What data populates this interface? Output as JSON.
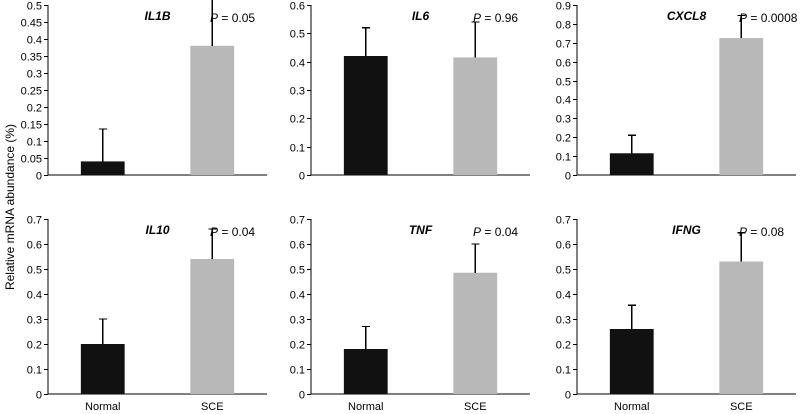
{
  "figure": {
    "ylabel": "Relative mRNA abundance (%)"
  },
  "colors": {
    "normal": "#111111",
    "sce": "#b8b8b8"
  },
  "chart_data": [
    {
      "type": "bar",
      "title": "IL1B",
      "annotation": {
        "prefix": "P",
        "text": " = 0.05"
      },
      "categories": [
        "Normal",
        "SCE"
      ],
      "values": [
        0.04,
        0.38
      ],
      "errors": [
        0.095,
        0.15
      ],
      "ylim": [
        0,
        0.5
      ],
      "yticks": [
        "0",
        "0.05",
        "0.1",
        "0.15",
        "0.2",
        "0.25",
        "0.3",
        "0.35",
        "0.4",
        "0.45",
        "0.5"
      ],
      "show_category_labels": false
    },
    {
      "type": "bar",
      "title": "IL6",
      "annotation": {
        "prefix": "P",
        "text": " = 0.96"
      },
      "categories": [
        "Normal",
        "SCE"
      ],
      "values": [
        0.42,
        0.415
      ],
      "errors": [
        0.1,
        0.125
      ],
      "ylim": [
        0,
        0.6
      ],
      "yticks": [
        "0",
        "0.1",
        "0.2",
        "0.3",
        "0.4",
        "0.5",
        "0.6"
      ],
      "show_category_labels": false
    },
    {
      "type": "bar",
      "title": "CXCL8",
      "annotation": {
        "prefix": "P",
        "text": " = 0.0008"
      },
      "categories": [
        "Normal",
        "SCE"
      ],
      "values": [
        0.115,
        0.725
      ],
      "errors": [
        0.095,
        0.12
      ],
      "ylim": [
        0,
        0.9
      ],
      "yticks": [
        "0",
        "0.1",
        "0.2",
        "0.3",
        "0.4",
        "0.5",
        "0.6",
        "0.7",
        "0.8",
        "0.9"
      ],
      "show_category_labels": false
    },
    {
      "type": "bar",
      "title": "IL10",
      "annotation": {
        "prefix": "P",
        "text": " = 0.04"
      },
      "categories": [
        "Normal",
        "SCE"
      ],
      "values": [
        0.2,
        0.54
      ],
      "errors": [
        0.1,
        0.12
      ],
      "ylim": [
        0,
        0.7
      ],
      "yticks": [
        "0",
        "0.1",
        "0.2",
        "0.3",
        "0.4",
        "0.5",
        "0.6",
        "0.7"
      ],
      "show_category_labels": true
    },
    {
      "type": "bar",
      "title": "TNF",
      "annotation": {
        "prefix": "P",
        "text": " = 0.04"
      },
      "categories": [
        "Normal",
        "SCE"
      ],
      "values": [
        0.18,
        0.485
      ],
      "errors": [
        0.09,
        0.115
      ],
      "ylim": [
        0,
        0.7
      ],
      "yticks": [
        "0",
        "0.1",
        "0.2",
        "0.3",
        "0.4",
        "0.5",
        "0.6",
        "0.7"
      ],
      "show_category_labels": true
    },
    {
      "type": "bar",
      "title": "IFNG",
      "annotation": {
        "prefix": "P",
        "text": " = 0.08"
      },
      "categories": [
        "Normal",
        "SCE"
      ],
      "values": [
        0.26,
        0.53
      ],
      "errors": [
        0.095,
        0.115
      ],
      "ylim": [
        0,
        0.7
      ],
      "yticks": [
        "0",
        "0.1",
        "0.2",
        "0.3",
        "0.4",
        "0.5",
        "0.6",
        "0.7"
      ],
      "show_category_labels": true
    }
  ]
}
